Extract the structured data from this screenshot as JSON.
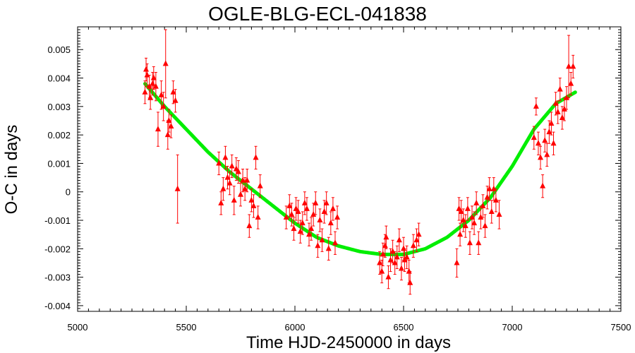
{
  "chart_data": {
    "type": "scatter",
    "title": "OGLE-BLG-ECL-041838",
    "xlabel": "Time HJD-2450000 in days",
    "ylabel": "O-C in days",
    "xlim": [
      5000,
      7500
    ],
    "ylim": [
      -0.0042,
      0.0058
    ],
    "x_ticks": [
      5000,
      5500,
      6000,
      6500,
      7000,
      7500
    ],
    "y_ticks": [
      -0.004,
      -0.003,
      -0.002,
      -0.001,
      0,
      0.001,
      0.002,
      0.003,
      0.004,
      0.005
    ],
    "y_tick_labels": [
      "-0.004",
      "-0.003",
      "-0.002",
      "-0.001",
      "0",
      "0.001",
      "0.002",
      "0.003",
      "0.004",
      "0.005"
    ],
    "grid": false,
    "colors": {
      "points": "#ff0000",
      "fit": "#00ee00"
    },
    "series": [
      {
        "kind": "points_with_errorbars",
        "points": [
          {
            "x": 5310,
            "y": 0.0035,
            "err": 0.0004
          },
          {
            "x": 5315,
            "y": 0.0043,
            "err": 0.0004
          },
          {
            "x": 5320,
            "y": 0.0041,
            "err": 0.0004
          },
          {
            "x": 5330,
            "y": 0.0037,
            "err": 0.0004
          },
          {
            "x": 5335,
            "y": 0.0033,
            "err": 0.0004
          },
          {
            "x": 5345,
            "y": 0.0038,
            "err": 0.0004
          },
          {
            "x": 5350,
            "y": 0.004,
            "err": 0.0004
          },
          {
            "x": 5360,
            "y": 0.0037,
            "err": 0.0005
          },
          {
            "x": 5370,
            "y": 0.0022,
            "err": 0.0006
          },
          {
            "x": 5385,
            "y": 0.0034,
            "err": 0.0005
          },
          {
            "x": 5395,
            "y": 0.003,
            "err": 0.0005
          },
          {
            "x": 5405,
            "y": 0.0045,
            "err": 0.0012
          },
          {
            "x": 5415,
            "y": 0.002,
            "err": 0.0005
          },
          {
            "x": 5420,
            "y": 0.0025,
            "err": 0.0004
          },
          {
            "x": 5430,
            "y": 0.0023,
            "err": 0.0004
          },
          {
            "x": 5440,
            "y": 0.0035,
            "err": 0.0004
          },
          {
            "x": 5450,
            "y": 0.0032,
            "err": 0.0004
          },
          {
            "x": 5460,
            "y": 0.0001,
            "err": 0.0012
          },
          {
            "x": 5650,
            "y": 0.001,
            "err": 0.0004
          },
          {
            "x": 5660,
            "y": -0.0004,
            "err": 0.0004
          },
          {
            "x": 5670,
            "y": 0.0001,
            "err": 0.0004
          },
          {
            "x": 5680,
            "y": 0.0012,
            "err": 0.0004
          },
          {
            "x": 5690,
            "y": 0.0005,
            "err": 0.0004
          },
          {
            "x": 5700,
            "y": 0.0003,
            "err": 0.0004
          },
          {
            "x": 5710,
            "y": 0.0009,
            "err": 0.0004
          },
          {
            "x": 5720,
            "y": -0.0003,
            "err": 0.0005
          },
          {
            "x": 5730,
            "y": 0.0008,
            "err": 0.0004
          },
          {
            "x": 5740,
            "y": 0.0007,
            "err": 0.0004
          },
          {
            "x": 5750,
            "y": -0.0001,
            "err": 0.0004
          },
          {
            "x": 5760,
            "y": 0.0004,
            "err": 0.0004
          },
          {
            "x": 5770,
            "y": 0.0001,
            "err": 0.0004
          },
          {
            "x": 5780,
            "y": 0.0004,
            "err": 0.0004
          },
          {
            "x": 5790,
            "y": -0.0012,
            "err": 0.0004
          },
          {
            "x": 5800,
            "y": -0.0003,
            "err": 0.0004
          },
          {
            "x": 5810,
            "y": -0.0005,
            "err": 0.0004
          },
          {
            "x": 5820,
            "y": 0.0012,
            "err": 0.0004
          },
          {
            "x": 5830,
            "y": -0.0009,
            "err": 0.0004
          },
          {
            "x": 5840,
            "y": 0.0002,
            "err": 0.0004
          },
          {
            "x": 5960,
            "y": -0.0009,
            "err": 0.0004
          },
          {
            "x": 5975,
            "y": -0.0005,
            "err": 0.0004
          },
          {
            "x": 5985,
            "y": -0.0008,
            "err": 0.0004
          },
          {
            "x": 5995,
            "y": -0.0013,
            "err": 0.0004
          },
          {
            "x": 6005,
            "y": -0.0006,
            "err": 0.0004
          },
          {
            "x": 6015,
            "y": -0.0007,
            "err": 0.0004
          },
          {
            "x": 6025,
            "y": -0.0014,
            "err": 0.0004
          },
          {
            "x": 6035,
            "y": -0.0011,
            "err": 0.0004
          },
          {
            "x": 6045,
            "y": -0.0004,
            "err": 0.0004
          },
          {
            "x": 6055,
            "y": -0.0006,
            "err": 0.0004
          },
          {
            "x": 6065,
            "y": -0.0015,
            "err": 0.0004
          },
          {
            "x": 6075,
            "y": -0.0013,
            "err": 0.0004
          },
          {
            "x": 6085,
            "y": -0.0008,
            "err": 0.0004
          },
          {
            "x": 6095,
            "y": -0.0004,
            "err": 0.0004
          },
          {
            "x": 6105,
            "y": -0.0019,
            "err": 0.0004
          },
          {
            "x": 6115,
            "y": -0.001,
            "err": 0.0004
          },
          {
            "x": 6125,
            "y": -0.0017,
            "err": 0.0004
          },
          {
            "x": 6135,
            "y": -0.0007,
            "err": 0.0004
          },
          {
            "x": 6145,
            "y": -0.0004,
            "err": 0.0004
          },
          {
            "x": 6155,
            "y": -0.002,
            "err": 0.0004
          },
          {
            "x": 6165,
            "y": -0.0011,
            "err": 0.0004
          },
          {
            "x": 6175,
            "y": -0.0006,
            "err": 0.0004
          },
          {
            "x": 6185,
            "y": -0.0018,
            "err": 0.0004
          },
          {
            "x": 6195,
            "y": -0.0009,
            "err": 0.0004
          },
          {
            "x": 6390,
            "y": -0.0025,
            "err": 0.0004
          },
          {
            "x": 6400,
            "y": -0.0028,
            "err": 0.0004
          },
          {
            "x": 6405,
            "y": -0.0022,
            "err": 0.0004
          },
          {
            "x": 6415,
            "y": -0.0019,
            "err": 0.0004
          },
          {
            "x": 6420,
            "y": -0.0016,
            "err": 0.0004
          },
          {
            "x": 6430,
            "y": -0.003,
            "err": 0.0004
          },
          {
            "x": 6440,
            "y": -0.0024,
            "err": 0.0004
          },
          {
            "x": 6450,
            "y": -0.0021,
            "err": 0.0004
          },
          {
            "x": 6460,
            "y": -0.0025,
            "err": 0.0004
          },
          {
            "x": 6470,
            "y": -0.0023,
            "err": 0.0004
          },
          {
            "x": 6480,
            "y": -0.0017,
            "err": 0.0004
          },
          {
            "x": 6490,
            "y": -0.0027,
            "err": 0.0004
          },
          {
            "x": 6500,
            "y": -0.002,
            "err": 0.0004
          },
          {
            "x": 6505,
            "y": -0.0024,
            "err": 0.0004
          },
          {
            "x": 6515,
            "y": -0.0023,
            "err": 0.0004
          },
          {
            "x": 6525,
            "y": -0.0028,
            "err": 0.0004
          },
          {
            "x": 6530,
            "y": -0.0032,
            "err": 0.0004
          },
          {
            "x": 6545,
            "y": -0.0019,
            "err": 0.0004
          },
          {
            "x": 6560,
            "y": -0.0017,
            "err": 0.0004
          },
          {
            "x": 6570,
            "y": -0.0015,
            "err": 0.0004
          },
          {
            "x": 6745,
            "y": -0.0025,
            "err": 0.0005
          },
          {
            "x": 6755,
            "y": -0.0006,
            "err": 0.0004
          },
          {
            "x": 6760,
            "y": -0.0015,
            "err": 0.0004
          },
          {
            "x": 6765,
            "y": -0.0007,
            "err": 0.0004
          },
          {
            "x": 6775,
            "y": -0.001,
            "err": 0.0004
          },
          {
            "x": 6785,
            "y": -0.0012,
            "err": 0.0004
          },
          {
            "x": 6795,
            "y": -0.0006,
            "err": 0.0004
          },
          {
            "x": 6805,
            "y": -0.0018,
            "err": 0.0004
          },
          {
            "x": 6815,
            "y": -0.0009,
            "err": 0.0004
          },
          {
            "x": 6825,
            "y": -0.0011,
            "err": 0.0004
          },
          {
            "x": 6835,
            "y": -0.0004,
            "err": 0.0004
          },
          {
            "x": 6845,
            "y": -0.0018,
            "err": 0.0004
          },
          {
            "x": 6855,
            "y": -0.0009,
            "err": 0.0004
          },
          {
            "x": 6865,
            "y": -0.0005,
            "err": 0.0004
          },
          {
            "x": 6875,
            "y": -0.0012,
            "err": 0.0004
          },
          {
            "x": 6885,
            "y": -0.0002,
            "err": 0.0004
          },
          {
            "x": 6895,
            "y": 0.0001,
            "err": 0.0004
          },
          {
            "x": 6905,
            "y": -0.0007,
            "err": 0.0004
          },
          {
            "x": 6915,
            "y": 0.0001,
            "err": 0.0004
          },
          {
            "x": 6925,
            "y": -0.0003,
            "err": 0.0004
          },
          {
            "x": 6940,
            "y": -0.0008,
            "err": 0.0005
          },
          {
            "x": 7100,
            "y": 0.0019,
            "err": 0.0004
          },
          {
            "x": 7110,
            "y": 0.003,
            "err": 0.0003
          },
          {
            "x": 7120,
            "y": 0.0017,
            "err": 0.0004
          },
          {
            "x": 7130,
            "y": 0.0012,
            "err": 0.0004
          },
          {
            "x": 7140,
            "y": 0.0002,
            "err": 0.0004
          },
          {
            "x": 7150,
            "y": 0.0018,
            "err": 0.0004
          },
          {
            "x": 7160,
            "y": 0.0013,
            "err": 0.0004
          },
          {
            "x": 7170,
            "y": 0.0021,
            "err": 0.0004
          },
          {
            "x": 7180,
            "y": 0.0024,
            "err": 0.0004
          },
          {
            "x": 7190,
            "y": 0.0017,
            "err": 0.0004
          },
          {
            "x": 7200,
            "y": 0.0031,
            "err": 0.0004
          },
          {
            "x": 7210,
            "y": 0.0028,
            "err": 0.0004
          },
          {
            "x": 7220,
            "y": 0.0036,
            "err": 0.0004
          },
          {
            "x": 7230,
            "y": 0.0026,
            "err": 0.0004
          },
          {
            "x": 7240,
            "y": 0.0029,
            "err": 0.0004
          },
          {
            "x": 7250,
            "y": 0.0033,
            "err": 0.0004
          },
          {
            "x": 7260,
            "y": 0.0044,
            "err": 0.0011
          },
          {
            "x": 7270,
            "y": 0.0038,
            "err": 0.0004
          },
          {
            "x": 7280,
            "y": 0.0044,
            "err": 0.0004
          }
        ]
      },
      {
        "kind": "fit_curve",
        "x": [
          5310,
          5400,
          5500,
          5600,
          5700,
          5800,
          5900,
          6000,
          6100,
          6200,
          6300,
          6400,
          6500,
          6600,
          6700,
          6800,
          6900,
          7000,
          7100,
          7200,
          7290
        ],
        "y": [
          0.0038,
          0.003,
          0.0022,
          0.0014,
          0.0007,
          0.0001,
          -0.0005,
          -0.0011,
          -0.0016,
          -0.0019,
          -0.0021,
          -0.0022,
          -0.0022,
          -0.002,
          -0.0016,
          -0.001,
          -0.0002,
          0.0009,
          0.0022,
          0.0031,
          0.0035
        ]
      }
    ]
  }
}
